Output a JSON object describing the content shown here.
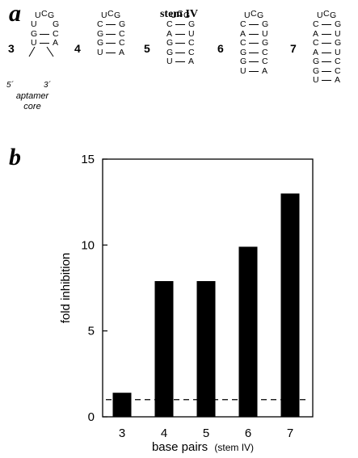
{
  "panel_a": {
    "letter": "a",
    "title": "stem IV",
    "loop": [
      "U",
      "C",
      "G"
    ],
    "variants": [
      {
        "num": "3",
        "pairs": [
          [
            "G",
            "C"
          ],
          [
            "U",
            "A"
          ]
        ],
        "side_left": "U",
        "side_right": "G"
      },
      {
        "num": "4",
        "pairs": [
          [
            "C",
            "G"
          ],
          [
            "G",
            "C"
          ],
          [
            "G",
            "C"
          ],
          [
            "U",
            "A"
          ]
        ]
      },
      {
        "num": "5",
        "pairs": [
          [
            "C",
            "G"
          ],
          [
            "A",
            "U"
          ],
          [
            "G",
            "C"
          ],
          [
            "G",
            "C"
          ],
          [
            "U",
            "A"
          ]
        ]
      },
      {
        "num": "6",
        "pairs": [
          [
            "C",
            "G"
          ],
          [
            "A",
            "U"
          ],
          [
            "C",
            "G"
          ],
          [
            "G",
            "C"
          ],
          [
            "G",
            "C"
          ],
          [
            "U",
            "A"
          ]
        ]
      },
      {
        "num": "7",
        "pairs": [
          [
            "C",
            "G"
          ],
          [
            "A",
            "U"
          ],
          [
            "C",
            "G"
          ],
          [
            "A",
            "U"
          ],
          [
            "G",
            "C"
          ],
          [
            "G",
            "C"
          ],
          [
            "U",
            "A"
          ]
        ]
      }
    ],
    "five_prime": "5´",
    "three_prime": "3´",
    "caption_line1": "aptamer",
    "caption_line2": "core"
  },
  "panel_b": {
    "letter": "b"
  },
  "chart_data": {
    "type": "bar",
    "categories": [
      "3",
      "4",
      "5",
      "6",
      "7"
    ],
    "values": [
      1.4,
      7.9,
      7.9,
      9.9,
      13.0
    ],
    "xlabel_main": "base pairs",
    "xlabel_sub": "(stem IV)",
    "ylabel": "fold inhibition",
    "ylim": [
      0,
      15
    ],
    "yticks": [
      0,
      5,
      10,
      15
    ],
    "reference_line": {
      "y": 1,
      "style": "dashed"
    },
    "bar_color": "#000000",
    "grid": false
  }
}
